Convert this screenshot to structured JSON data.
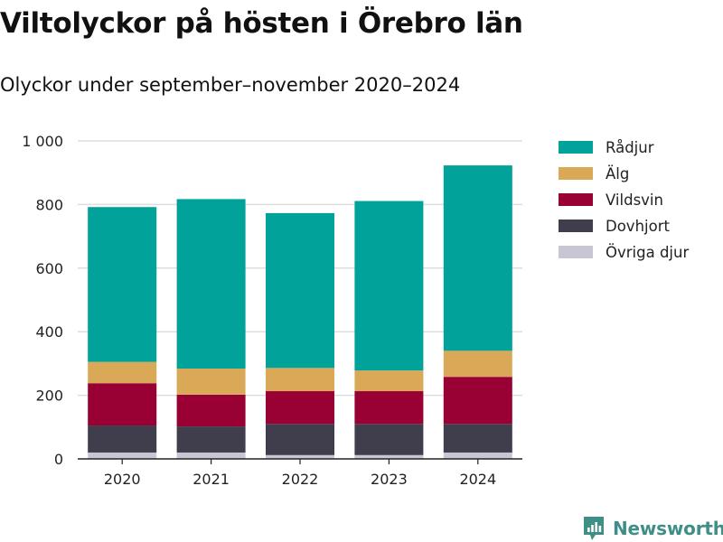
{
  "header": {
    "title": "Viltolyckor på hösten i Örebro län",
    "subtitle": "Olyckor under september–november 2020–2024"
  },
  "brand": {
    "name": "Newsworthy",
    "icon": "newsworthy-logo-icon",
    "color": "#3f8f87"
  },
  "chart_data": {
    "type": "bar",
    "stacked": true,
    "title": "Viltolyckor på hösten i Örebro län",
    "subtitle": "Olyckor under september–november 2020–2024",
    "xlabel": "",
    "ylabel": "",
    "categories": [
      "2020",
      "2021",
      "2022",
      "2023",
      "2024"
    ],
    "ylim": [
      0,
      1000
    ],
    "yticks": [
      0,
      200,
      400,
      600,
      800,
      1000
    ],
    "ytick_labels": [
      "0",
      "200",
      "400",
      "600",
      "800",
      "1 000"
    ],
    "grid": true,
    "legend_position": "right",
    "series": [
      {
        "name": "Övriga djur",
        "color": "#c8c6d2",
        "values": [
          20,
          20,
          12,
          12,
          20
        ]
      },
      {
        "name": "Dovhjort",
        "color": "#403d4d",
        "values": [
          85,
          82,
          98,
          98,
          90
        ]
      },
      {
        "name": "Vildsvin",
        "color": "#990033",
        "values": [
          133,
          100,
          103,
          103,
          148
        ]
      },
      {
        "name": "Älg",
        "color": "#d9a958",
        "values": [
          67,
          82,
          73,
          65,
          82
        ]
      },
      {
        "name": "Rådjur",
        "color": "#00a29a",
        "values": [
          487,
          533,
          487,
          533,
          583
        ]
      }
    ],
    "legend_order": [
      "Rådjur",
      "Älg",
      "Vildsvin",
      "Dovhjort",
      "Övriga djur"
    ]
  }
}
